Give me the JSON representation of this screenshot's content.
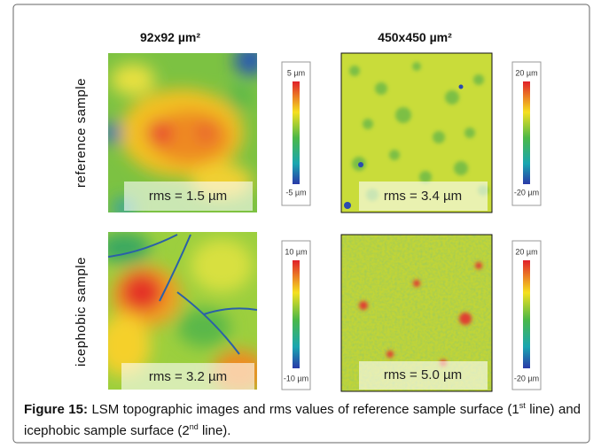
{
  "header": {
    "columns": [
      "92x92 µm²",
      "450x450 µm²"
    ]
  },
  "rows": [
    {
      "label": "reference sample",
      "panels": [
        {
          "rms": "rms = 1.5 µm",
          "scale_max": "5 µm",
          "scale_min": "-5 µm"
        },
        {
          "rms": "rms = 3.4 µm",
          "scale_max": "20 µm",
          "scale_min": "-20 µm"
        }
      ]
    },
    {
      "label": "icephobic sample",
      "panels": [
        {
          "rms": "rms = 3.2 µm",
          "scale_max": "10 µm",
          "scale_min": "-10 µm"
        },
        {
          "rms": "rms = 5.0 µm",
          "scale_max": "20 µm",
          "scale_min": "-20 µm"
        }
      ]
    }
  ],
  "caption": {
    "label": "Figure 15:",
    "text_1": "LSM topographic images and rms values of reference sample surface (1",
    "sup_1": "st",
    "text_2": "line) and icephobic sample surface (2",
    "sup_2": "nd",
    "text_3": "line)."
  }
}
